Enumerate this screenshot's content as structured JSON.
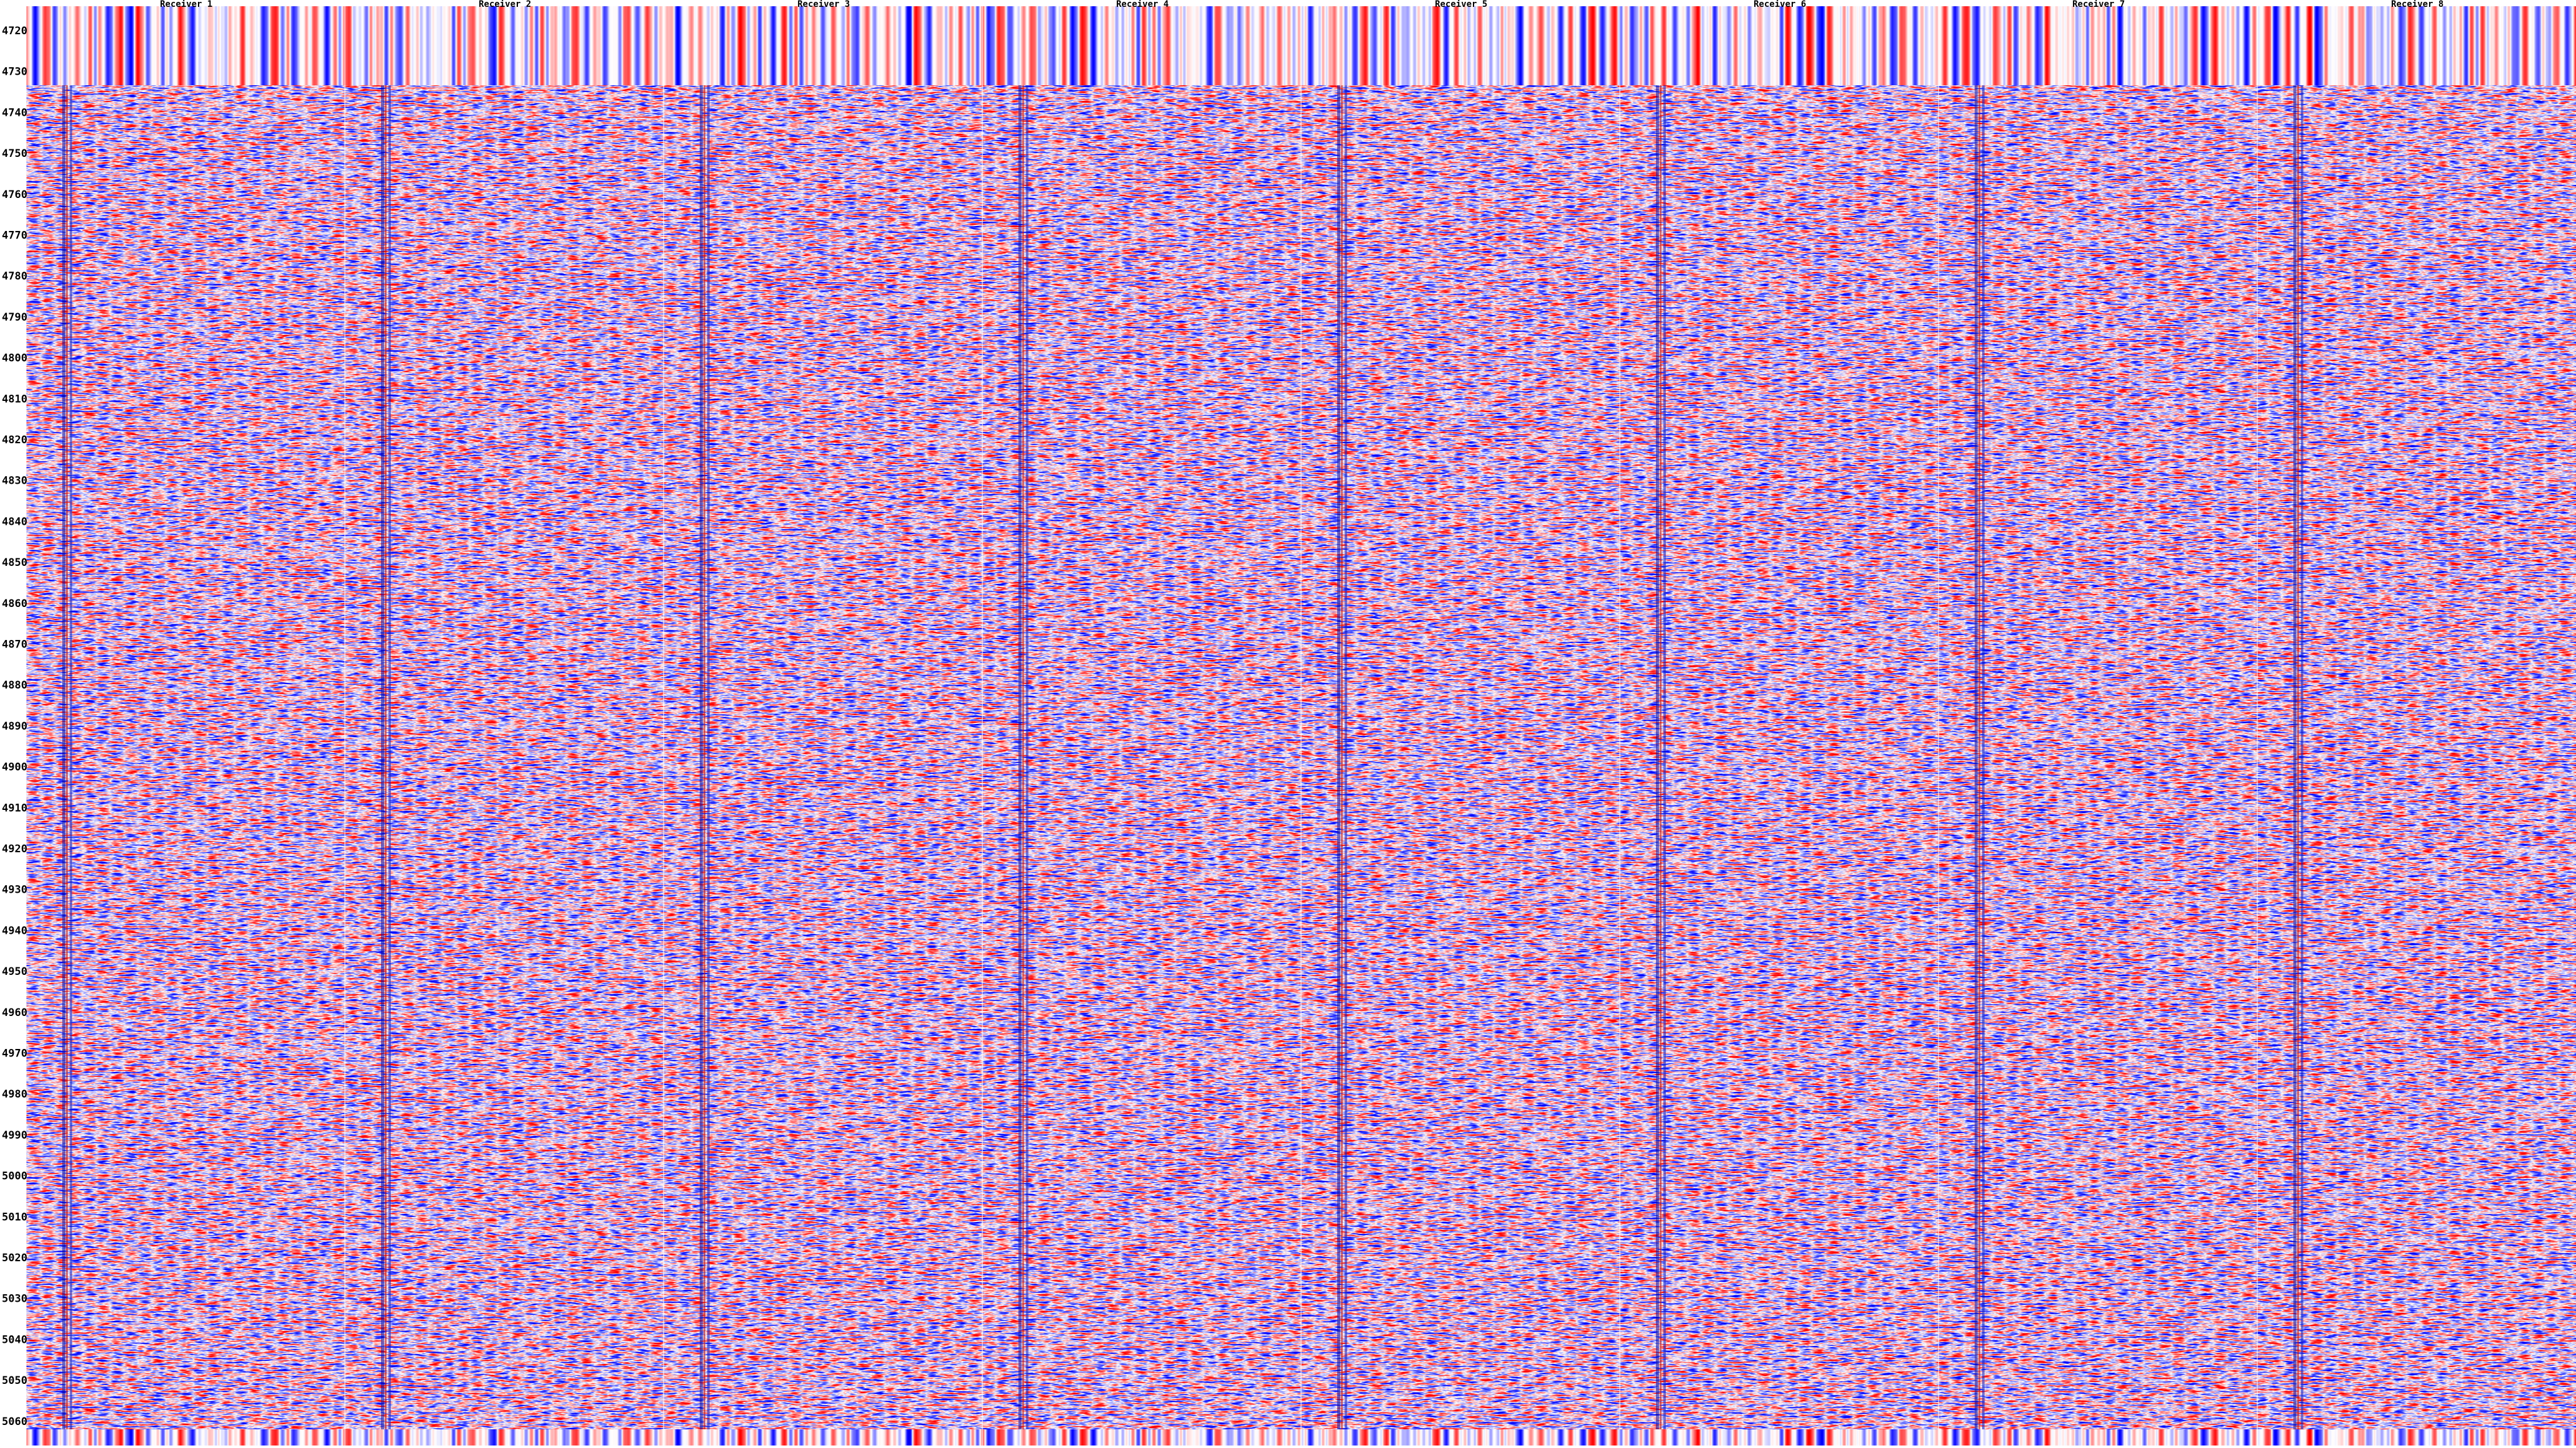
{
  "y_axis": {
    "ticks": [
      "4720",
      "4730",
      "4740",
      "4750",
      "4760",
      "4770",
      "4780",
      "4790",
      "4800",
      "4810",
      "4820",
      "4830",
      "4840",
      "4850",
      "4860",
      "4870",
      "4880",
      "4890",
      "4900",
      "4910",
      "4920",
      "4930",
      "4940",
      "4950",
      "4960",
      "4970",
      "4980",
      "4990",
      "5000",
      "5010",
      "5020",
      "5030",
      "5040",
      "5050",
      "5060"
    ]
  },
  "panels": [
    {
      "label": "Receiver 1"
    },
    {
      "label": "Receiver 2"
    },
    {
      "label": "Receiver 3"
    },
    {
      "label": "Receiver 4"
    },
    {
      "label": "Receiver 5"
    },
    {
      "label": "Receiver 6"
    },
    {
      "label": "Receiver 7"
    },
    {
      "label": "Receiver 8"
    }
  ]
}
